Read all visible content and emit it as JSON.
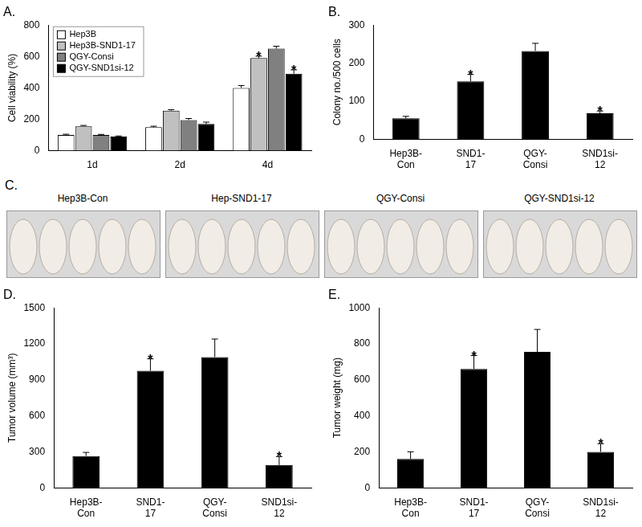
{
  "chart_data": [
    {
      "type": "bar",
      "title": "A.",
      "ylabel": "Cell viability (%)",
      "categories": [
        "1d",
        "2d",
        "4d"
      ],
      "series": [
        {
          "name": "Hep3B",
          "color": "#ffffff",
          "values": [
            100,
            150,
            400
          ],
          "errors": [
            5,
            6,
            15
          ]
        },
        {
          "name": "Hep3B-SND1-17",
          "color": "#c0c0c0",
          "values": [
            155,
            255,
            590
          ],
          "errors": [
            6,
            6,
            12
          ]
        },
        {
          "name": "QGY-Consi",
          "color": "#808080",
          "values": [
            100,
            195,
            650
          ],
          "errors": [
            4,
            10,
            15
          ]
        },
        {
          "name": "QGY-SND1si-12",
          "color": "#000000",
          "values": [
            90,
            170,
            490
          ],
          "errors": [
            4,
            12,
            25
          ]
        }
      ],
      "annotations": [
        {
          "text": "*",
          "category": "4d",
          "series": "Hep3B-SND1-17"
        },
        {
          "text": "*",
          "category": "4d",
          "series": "QGY-SND1si-12"
        }
      ],
      "ylim": [
        0,
        800
      ],
      "yticks": [
        0,
        200,
        400,
        600,
        800
      ],
      "grid": false,
      "legend": "top-left"
    },
    {
      "type": "bar",
      "title": "B.",
      "ylabel": "Colony no./500 cells",
      "categories": [
        "Hep3B-\nCon",
        "SND1-\n17",
        "QGY-\nConsi",
        "SND1si-\n12"
      ],
      "values": [
        55,
        152,
        232,
        68
      ],
      "errors": [
        5,
        18,
        20,
        6
      ],
      "color": "#000000",
      "annotations": [
        {
          "text": "*",
          "category": "SND1-\n17"
        },
        {
          "text": "*",
          "category": "SND1si-\n12"
        }
      ],
      "ylim": [
        0,
        300
      ],
      "yticks": [
        0,
        100,
        200,
        300
      ],
      "grid": false
    },
    {
      "type": "bar",
      "title": "D.",
      "ylabel": "Tumor volume (mm³)",
      "categories": [
        "Hep3B-\nCon",
        "SND1-\n17",
        "QGY-\nConsi",
        "SND1si-\n12"
      ],
      "values": [
        265,
        975,
        1090,
        190
      ],
      "errors": [
        30,
        100,
        150,
        70
      ],
      "color": "#000000",
      "annotations": [
        {
          "text": "*",
          "category": "SND1-\n17"
        },
        {
          "text": "*",
          "category": "SND1si-\n12"
        }
      ],
      "ylim": [
        0,
        1500
      ],
      "yticks": [
        0,
        300,
        600,
        900,
        1200,
        1500
      ],
      "grid": false
    },
    {
      "type": "bar",
      "title": "E.",
      "ylabel": "Tumor weight (mg)",
      "categories": [
        "Hep3B-\nCon",
        "SND1-\n17",
        "QGY-\nConsi",
        "SND1si-\n12"
      ],
      "values": [
        160,
        660,
        755,
        200
      ],
      "errors": [
        40,
        75,
        125,
        45
      ],
      "color": "#000000",
      "annotations": [
        {
          "text": "*",
          "category": "SND1-\n17"
        },
        {
          "text": "*",
          "category": "SND1si-\n12"
        }
      ],
      "ylim": [
        0,
        1000
      ],
      "yticks": [
        0,
        200,
        400,
        600,
        800,
        1000
      ],
      "grid": false
    }
  ],
  "panel_c": {
    "label": "C.",
    "images": [
      "Hep3B-Con",
      "Hep-SND1-17",
      "QGY-Consi",
      "QGY-SND1si-12"
    ]
  }
}
